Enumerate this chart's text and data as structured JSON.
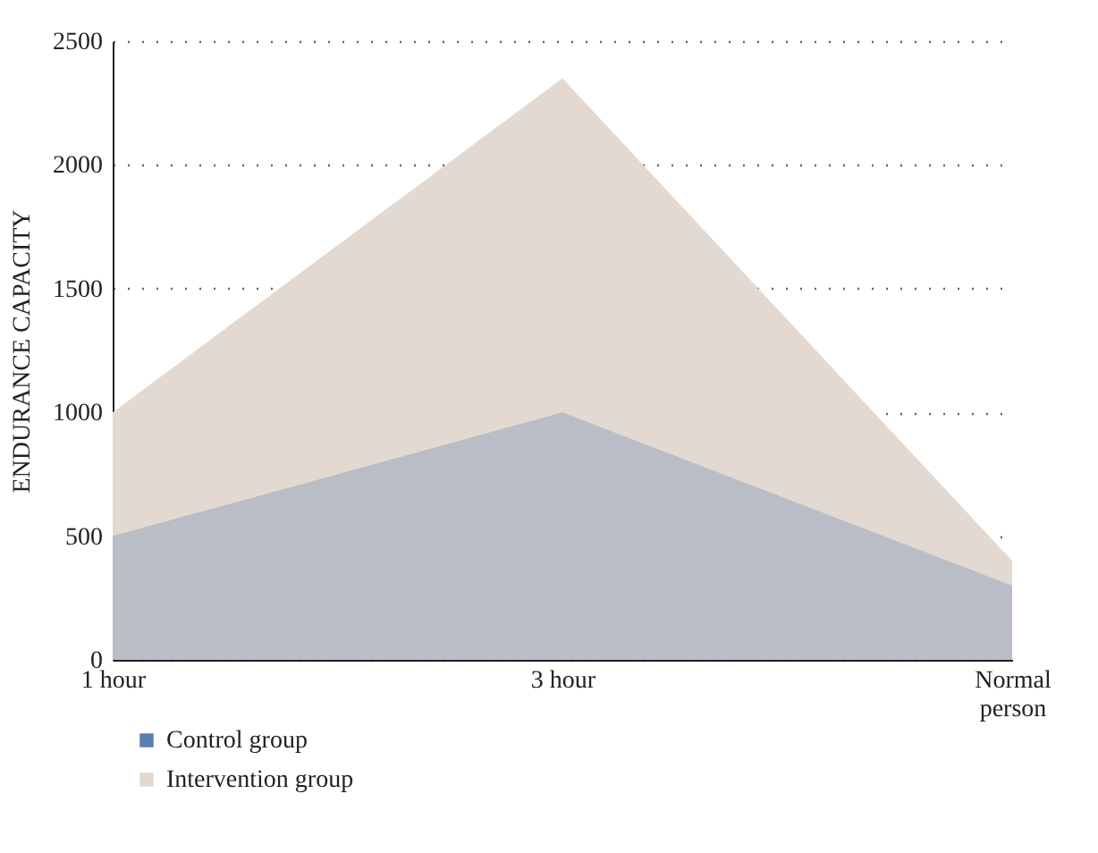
{
  "chart_data": {
    "type": "area",
    "ylabel": "ENDURANCE CAPACITY",
    "categories": [
      "1 hour",
      "3 hour",
      "Normal person"
    ],
    "series": [
      {
        "name": "Control group",
        "color": "#5b7fb0",
        "values": [
          500,
          1000,
          300
        ]
      },
      {
        "name": "Intervention group",
        "color": "#e3d9d0",
        "values": [
          1000,
          2350,
          400
        ]
      }
    ],
    "ylim": [
      0,
      2500
    ],
    "yticks": [
      0,
      500,
      1000,
      1500,
      2000,
      2500
    ],
    "grid": "y",
    "legend": "bottom left"
  }
}
